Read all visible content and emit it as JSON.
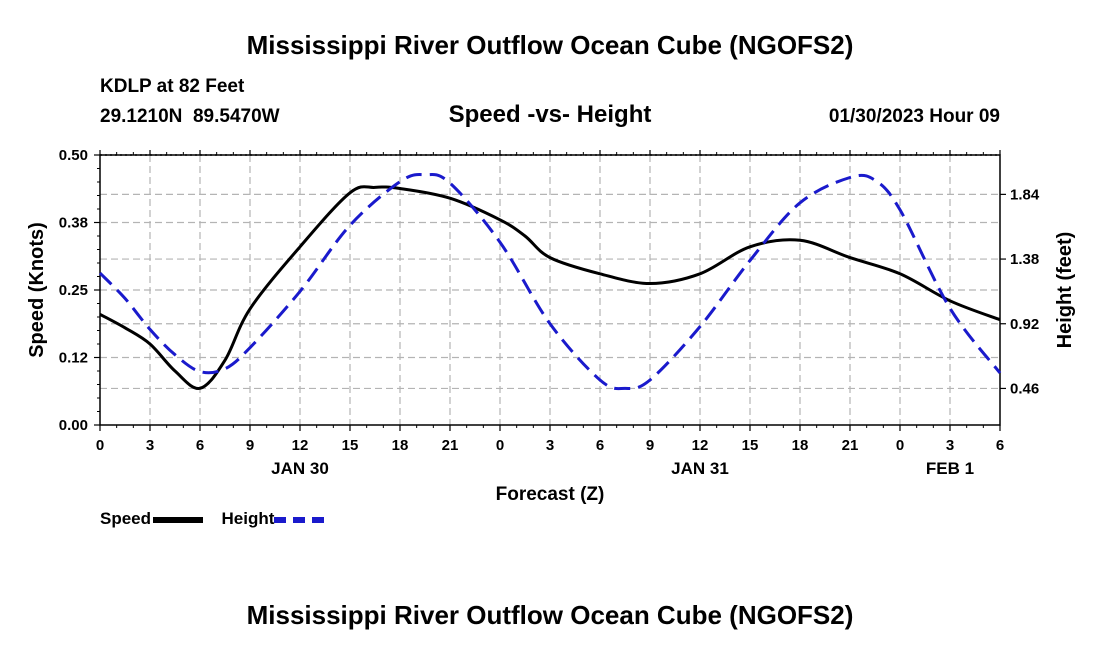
{
  "page_title": "Mississippi River Outflow Ocean Cube (NGOFS2)",
  "station": {
    "name_line": "KDLP at 82 Feet",
    "coords_line": "29.1210N  89.5470W",
    "datetime": "01/30/2023 Hour 09"
  },
  "footer_title": "Mississippi River Outflow Ocean Cube (NGOFS2)",
  "colors": {
    "speed": "#000000",
    "height": "#1a1acc",
    "grid": "#b4b4b4"
  },
  "chart_data": {
    "type": "line",
    "title": "Speed -vs- Height",
    "xlabel": "Forecast (Z)",
    "ylabel": "Speed (Knots)",
    "y2label": "Height (feet)",
    "x_range": [
      0,
      54
    ],
    "ylim": [
      0,
      0.5
    ],
    "y2lim": [
      0.2,
      2.12
    ],
    "x_ticks": [
      0,
      3,
      6,
      9,
      12,
      15,
      18,
      21,
      24,
      27,
      30,
      33,
      36,
      39,
      42,
      45,
      48,
      51,
      54
    ],
    "x_tick_labels": [
      "0",
      "3",
      "6",
      "9",
      "12",
      "15",
      "18",
      "21",
      "0",
      "3",
      "6",
      "9",
      "12",
      "15",
      "18",
      "21",
      "0",
      "3",
      "6"
    ],
    "day_labels": [
      {
        "x": 12,
        "label": "JAN 30"
      },
      {
        "x": 36,
        "label": "JAN 31"
      },
      {
        "x": 51,
        "label": "FEB 1"
      }
    ],
    "y_ticks": [
      0.0,
      0.125,
      0.25,
      0.375,
      0.5
    ],
    "y_tick_labels": [
      "0.00",
      "0.12",
      "0.25",
      "0.38",
      "0.50"
    ],
    "y2_ticks": [
      0.46,
      0.92,
      1.38,
      1.84
    ],
    "y2_tick_labels": [
      "0.46",
      "0.92",
      "1.38",
      "1.84"
    ],
    "grid": true,
    "series": [
      {
        "name": "Speed",
        "axis": "left",
        "style": "solid",
        "x": [
          0,
          1.5,
          3,
          4.5,
          6,
          7.5,
          9,
          12,
          15,
          16.5,
          18,
          21,
          24,
          25.5,
          27,
          30,
          33,
          36,
          39,
          42,
          45,
          48,
          51,
          54
        ],
        "values": [
          0.205,
          0.18,
          0.15,
          0.1,
          0.068,
          0.12,
          0.215,
          0.33,
          0.43,
          0.44,
          0.438,
          0.42,
          0.38,
          0.35,
          0.31,
          0.28,
          0.262,
          0.28,
          0.33,
          0.342,
          0.31,
          0.28,
          0.23,
          0.195
        ]
      },
      {
        "name": "Height",
        "axis": "right",
        "style": "dashed",
        "x": [
          0,
          1.5,
          3,
          4.5,
          6,
          7.5,
          9,
          12,
          15,
          18,
          19.5,
          21,
          24,
          27,
          30,
          31.5,
          33,
          36,
          39,
          42,
          45,
          46.5,
          48,
          51,
          54
        ],
        "values": [
          1.28,
          1.1,
          0.88,
          0.7,
          0.58,
          0.6,
          0.75,
          1.15,
          1.62,
          1.93,
          1.98,
          1.92,
          1.5,
          0.92,
          0.52,
          0.46,
          0.52,
          0.9,
          1.37,
          1.78,
          1.96,
          1.94,
          1.73,
          1.03,
          0.57
        ]
      }
    ]
  }
}
